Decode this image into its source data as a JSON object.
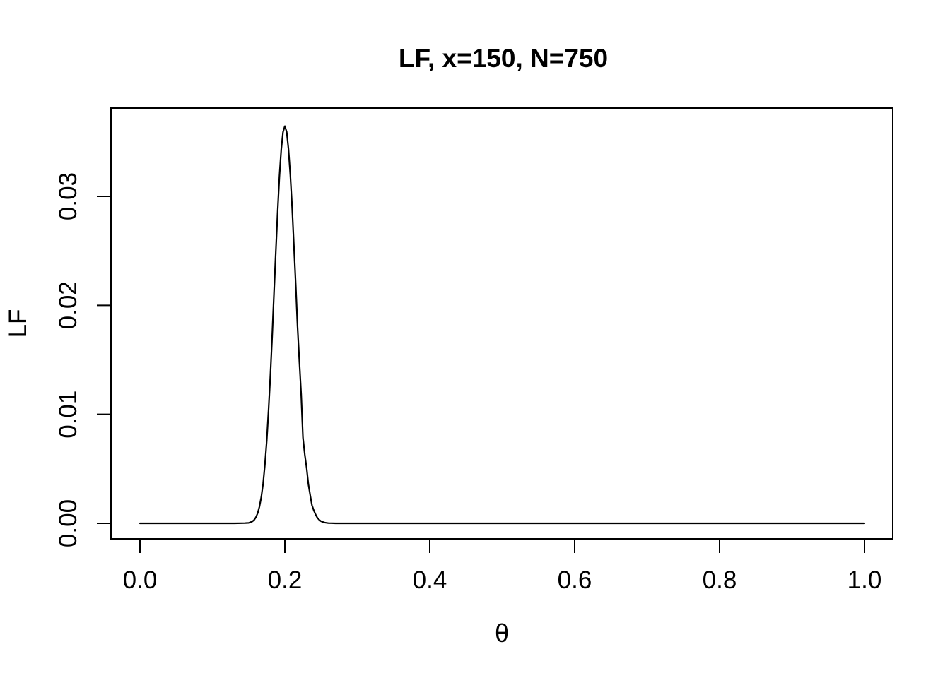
{
  "chart_data": {
    "type": "line",
    "title": "LF, x=150, N=750",
    "xlabel": "θ",
    "ylabel": "LF",
    "xlim": [
      0,
      1
    ],
    "ylim": [
      0,
      0.0365
    ],
    "grid": false,
    "legend": "none",
    "background": "#ffffff",
    "line_color": "#000000",
    "x_ticks": {
      "values": [
        0,
        0.2,
        0.4,
        0.6,
        0.8,
        1.0
      ],
      "labels": [
        "0.0",
        "0.2",
        "0.4",
        "0.6",
        "0.8",
        "1.0"
      ]
    },
    "y_ticks": {
      "values": [
        0,
        0.01,
        0.02,
        0.03
      ],
      "labels": [
        "0.00",
        "0.01",
        "0.02",
        "0.03"
      ]
    },
    "series": [
      {
        "name": "LF",
        "description": "Binomial likelihood dbinom(150, 750, theta); peak 0.0364 at theta = 0.2",
        "points": [
          [
            0.0,
            0
          ],
          [
            0.05,
            0
          ],
          [
            0.1,
            0
          ],
          [
            0.13,
            0
          ],
          [
            0.14,
            1e-05
          ],
          [
            0.145,
            2e-05
          ],
          [
            0.1475,
            3e-05
          ],
          [
            0.15,
            4e-05
          ],
          [
            0.155,
            0.00017
          ],
          [
            0.1575,
            0.0003
          ],
          [
            0.16,
            0.00055
          ],
          [
            0.1625,
            0.00094
          ],
          [
            0.165,
            0.00154
          ],
          [
            0.1675,
            0.00243
          ],
          [
            0.17,
            0.00369
          ],
          [
            0.1725,
            0.0054
          ],
          [
            0.175,
            0.0076
          ],
          [
            0.1775,
            0.01034
          ],
          [
            0.18,
            0.01355
          ],
          [
            0.1825,
            0.0172
          ],
          [
            0.185,
            0.02104
          ],
          [
            0.1875,
            0.0249
          ],
          [
            0.19,
            0.02862
          ],
          [
            0.1925,
            0.0318
          ],
          [
            0.195,
            0.03431
          ],
          [
            0.1975,
            0.03589
          ],
          [
            0.2,
            0.03644
          ],
          [
            0.2025,
            0.03591
          ],
          [
            0.205,
            0.03436
          ],
          [
            0.2075,
            0.032
          ],
          [
            0.21,
            0.02898
          ],
          [
            0.2125,
            0.0255
          ],
          [
            0.215,
            0.0219
          ],
          [
            0.2175,
            0.0181
          ],
          [
            0.22,
            0.01489
          ],
          [
            0.2225,
            0.01182
          ],
          [
            0.225,
            0.00787
          ],
          [
            0.2275,
            0.0063
          ],
          [
            0.23,
            0.00508
          ],
          [
            0.2325,
            0.00358
          ],
          [
            0.235,
            0.00257
          ],
          [
            0.2375,
            0.00165
          ],
          [
            0.24,
            0.00118
          ],
          [
            0.2425,
            0.00079
          ],
          [
            0.245,
            0.0005
          ],
          [
            0.2475,
            0.00032
          ],
          [
            0.25,
            0.00019
          ],
          [
            0.2525,
            0.00012
          ],
          [
            0.255,
            7e-05
          ],
          [
            0.26,
            2e-05
          ],
          [
            0.265,
            1e-05
          ],
          [
            0.27,
            0
          ],
          [
            0.3,
            0
          ],
          [
            0.35,
            0
          ],
          [
            0.4,
            0
          ],
          [
            0.5,
            0
          ],
          [
            0.6,
            0
          ],
          [
            0.7,
            0
          ],
          [
            0.8,
            0
          ],
          [
            0.9,
            0
          ],
          [
            1.0,
            0
          ]
        ]
      }
    ]
  }
}
